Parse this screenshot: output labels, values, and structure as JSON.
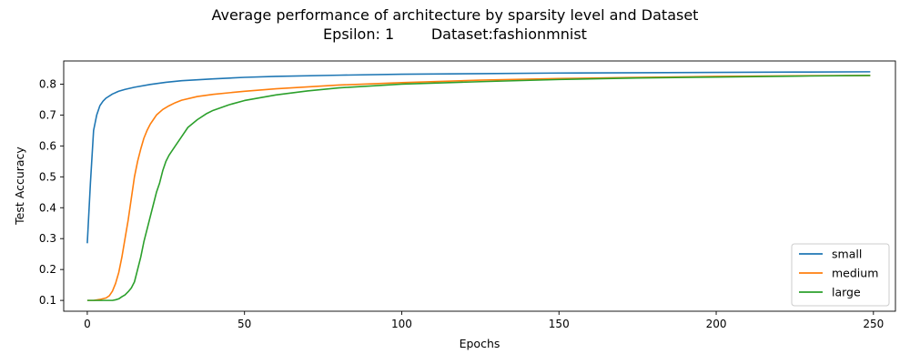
{
  "chart_data": {
    "type": "line",
    "title": "Average performance of architecture by sparsity level and Dataset",
    "subtitle": "Epsilon: 1        Dataset:fashionmnist",
    "xlabel": "Epochs",
    "ylabel": "Test Accuracy",
    "xlim": [
      -7.5,
      257
    ],
    "ylim": [
      0.065,
      0.875
    ],
    "xticks": [
      0,
      50,
      100,
      150,
      200,
      250
    ],
    "yticks": [
      0.1,
      0.2,
      0.3,
      0.4,
      0.5,
      0.6,
      0.7,
      0.8
    ],
    "xtick_labels": [
      "0",
      "50",
      "100",
      "150",
      "200",
      "250"
    ],
    "ytick_labels": [
      "0.1",
      "0.2",
      "0.3",
      "0.4",
      "0.5",
      "0.6",
      "0.7",
      "0.8"
    ],
    "grid": false,
    "legend": "lower-right",
    "series": [
      {
        "name": "small",
        "color": "#1f77b4",
        "x": [
          0,
          1,
          2,
          3,
          4,
          5,
          6,
          8,
          10,
          12,
          15,
          20,
          25,
          30,
          40,
          50,
          60,
          80,
          100,
          125,
          150,
          175,
          200,
          225,
          249
        ],
        "values": [
          0.285,
          0.48,
          0.65,
          0.7,
          0.73,
          0.745,
          0.755,
          0.768,
          0.777,
          0.783,
          0.79,
          0.799,
          0.806,
          0.811,
          0.817,
          0.822,
          0.825,
          0.829,
          0.832,
          0.834,
          0.836,
          0.837,
          0.838,
          0.839,
          0.84
        ]
      },
      {
        "name": "medium",
        "color": "#ff7f0e",
        "x": [
          0,
          2,
          4,
          6,
          7,
          8,
          9,
          10,
          11,
          12,
          13,
          14,
          15,
          16,
          17,
          18,
          19,
          20,
          21,
          22,
          24,
          26,
          28,
          30,
          35,
          40,
          50,
          60,
          80,
          100,
          125,
          150,
          175,
          200,
          225,
          249
        ],
        "values": [
          0.1,
          0.1,
          0.103,
          0.108,
          0.115,
          0.13,
          0.155,
          0.19,
          0.24,
          0.3,
          0.36,
          0.43,
          0.5,
          0.55,
          0.59,
          0.625,
          0.65,
          0.67,
          0.685,
          0.7,
          0.718,
          0.73,
          0.74,
          0.748,
          0.76,
          0.767,
          0.777,
          0.785,
          0.797,
          0.805,
          0.813,
          0.818,
          0.822,
          0.825,
          0.827,
          0.828
        ]
      },
      {
        "name": "large",
        "color": "#2ca02c",
        "x": [
          0,
          3,
          6,
          8,
          9,
          10,
          11,
          12,
          13,
          14,
          15,
          16,
          17,
          18,
          19,
          20,
          21,
          22,
          23,
          24,
          25,
          26,
          28,
          30,
          32,
          35,
          38,
          40,
          45,
          50,
          60,
          70,
          80,
          100,
          125,
          150,
          175,
          200,
          225,
          249
        ],
        "values": [
          0.1,
          0.1,
          0.1,
          0.1,
          0.102,
          0.105,
          0.112,
          0.118,
          0.128,
          0.14,
          0.16,
          0.2,
          0.24,
          0.29,
          0.33,
          0.37,
          0.41,
          0.45,
          0.48,
          0.52,
          0.55,
          0.57,
          0.6,
          0.63,
          0.66,
          0.685,
          0.705,
          0.715,
          0.733,
          0.747,
          0.765,
          0.778,
          0.788,
          0.8,
          0.808,
          0.815,
          0.82,
          0.823,
          0.826,
          0.828
        ]
      }
    ]
  }
}
